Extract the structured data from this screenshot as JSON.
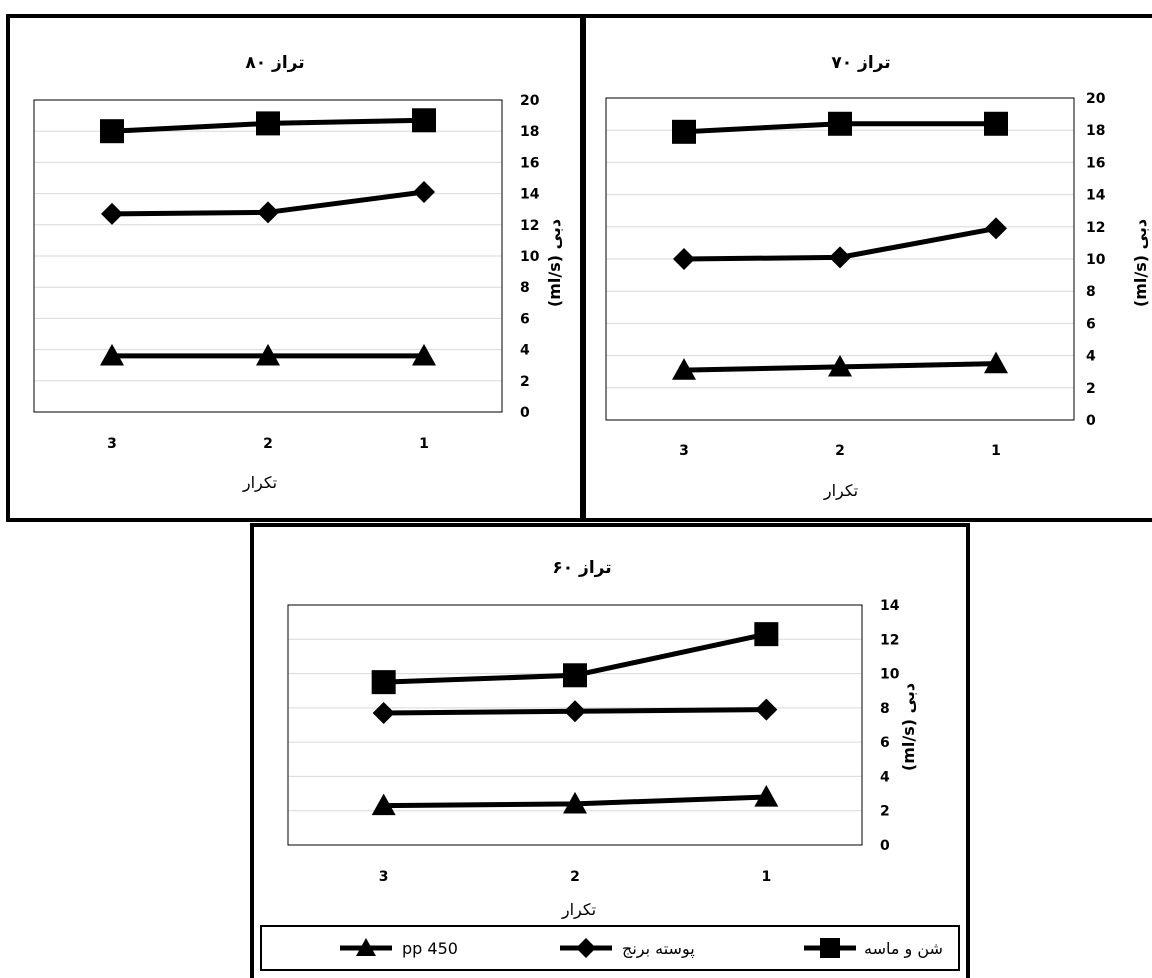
{
  "caption": "",
  "chart_data": [
    {
      "type": "line",
      "title": "تراز ۸۰",
      "xlabel": "تکرار",
      "ylabel": "(ml/s) دبی",
      "categories": [
        "3",
        "2",
        "1"
      ],
      "ylim": [
        0,
        20
      ],
      "ytick_step": 2,
      "grid": true,
      "y_axis_side": "right",
      "series": [
        {
          "name": "شن و ماسه",
          "marker": "square",
          "values": [
            18.0,
            18.5,
            18.7
          ]
        },
        {
          "name": "پوسته برنج",
          "marker": "diamond",
          "values": [
            12.7,
            12.8,
            14.1
          ]
        },
        {
          "name": "pp 450",
          "marker": "triangle",
          "values": [
            3.6,
            3.6,
            3.6
          ]
        }
      ]
    },
    {
      "type": "line",
      "title": "تراز ۷۰",
      "xlabel": "تکرار",
      "ylabel": "(ml/s) دبی",
      "categories": [
        "3",
        "2",
        "1"
      ],
      "ylim": [
        0,
        20
      ],
      "ytick_step": 2,
      "grid": true,
      "y_axis_side": "right",
      "series": [
        {
          "name": "شن و ماسه",
          "marker": "square",
          "values": [
            17.9,
            18.4,
            18.4
          ]
        },
        {
          "name": "پوسته برنج",
          "marker": "diamond",
          "values": [
            10.0,
            10.1,
            11.9
          ]
        },
        {
          "name": "pp 450",
          "marker": "triangle",
          "values": [
            3.1,
            3.3,
            3.5
          ]
        }
      ]
    },
    {
      "type": "line",
      "title": "تراز ۶۰",
      "xlabel": "تکرار",
      "ylabel": "(ml/s) دبی",
      "categories": [
        "3",
        "2",
        "1"
      ],
      "ylim": [
        0,
        14
      ],
      "ytick_step": 2,
      "grid": true,
      "y_axis_side": "right",
      "legend_position": "bottom",
      "series": [
        {
          "name": "شن و ماسه",
          "marker": "square",
          "values": [
            9.5,
            9.9,
            12.3
          ]
        },
        {
          "name": "پوسته برنج",
          "marker": "diamond",
          "values": [
            7.7,
            7.8,
            7.9
          ]
        },
        {
          "name": "pp 450",
          "marker": "triangle",
          "values": [
            2.3,
            2.4,
            2.8
          ]
        }
      ]
    }
  ],
  "legend": [
    {
      "label": "pp 450",
      "marker": "triangle"
    },
    {
      "label": "پوسته برنج",
      "marker": "diamond"
    },
    {
      "label": "شن و ماسه",
      "marker": "square"
    }
  ]
}
